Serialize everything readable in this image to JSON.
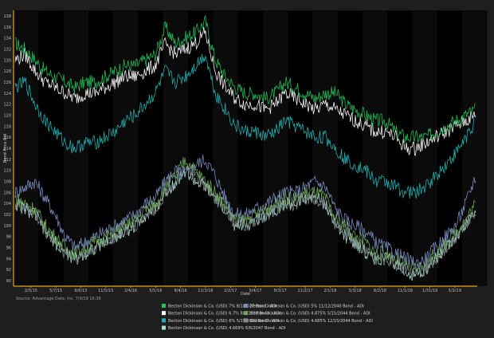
{
  "chart_data": {
    "type": "line",
    "xlabel": "Date",
    "ylabel": "Bond Price Bid",
    "source_note": "Source: Advantage Data, Inc. 7/9/19 16:36",
    "x_ticks": [
      "2/5/15",
      "5/7/15",
      "8/6/15",
      "11/5/15",
      "2/4/16",
      "5/5/16",
      "8/4/16",
      "11/3/16",
      "2/2/17",
      "5/4/17",
      "8/3/17",
      "11/2/17",
      "2/1/18",
      "5/3/18",
      "8/2/18",
      "11/1/18",
      "1/31/19",
      "5/2/19"
    ],
    "y_ticks": [
      90,
      92,
      94,
      96,
      98,
      100,
      102,
      104,
      106,
      108,
      110,
      112,
      114,
      116,
      118,
      120,
      122,
      124,
      126,
      128,
      130,
      132,
      134,
      136,
      138
    ],
    "ylim": [
      89,
      139
    ],
    "grid": false,
    "legend_position": "bottom",
    "series": [
      {
        "name": "Becton Dickinson & Co. (USD) 7% 8/1/2027 Bond - ADI",
        "color": "#22c35a",
        "values": [
          133,
          132,
          130,
          128,
          127,
          126,
          125,
          126,
          126,
          127,
          128,
          129,
          129,
          130,
          131,
          136,
          133,
          134,
          135,
          137,
          130,
          127,
          125,
          124,
          124,
          123,
          124,
          126,
          125,
          124,
          123,
          124,
          124,
          122,
          121,
          120,
          119,
          119,
          117,
          116,
          116,
          116,
          117,
          118,
          119,
          120,
          121
        ]
      },
      {
        "name": "Becton Dickinson & Co. (USD) 5% 11/12/2040 Bond - ADI",
        "color": "#7a8fc4",
        "values": [
          106,
          107,
          108,
          105,
          102,
          98,
          96,
          97,
          98,
          99,
          100,
          101,
          102,
          104,
          105,
          108,
          110,
          109,
          111,
          112,
          109,
          105,
          102,
          102,
          103,
          104,
          105,
          106,
          106,
          107,
          108,
          107,
          103,
          101,
          100,
          99,
          97,
          96,
          95,
          94,
          93,
          94,
          96,
          98,
          100,
          104,
          109
        ]
      },
      {
        "name": "Becton Dickinson & Co. (USD) 6.7% 8/1/2028 Bond - ADI",
        "color": "#ffffff",
        "values": [
          130,
          131,
          128,
          126,
          125,
          124,
          123,
          124,
          124,
          125,
          126,
          127,
          127,
          128,
          129,
          133,
          131,
          132,
          133,
          135,
          128,
          125,
          123,
          122,
          122,
          121,
          122,
          124,
          123,
          122,
          121,
          122,
          121,
          120,
          119,
          118,
          117,
          117,
          116,
          114,
          114,
          115,
          116,
          117,
          118,
          119,
          120
        ]
      },
      {
        "name": "Becton Dickinson & Co. (USD) 4.875% 5/15/2044 Bond - ADI",
        "color": "#6faa55",
        "values": [
          105,
          104,
          103,
          100,
          98,
          96,
          95,
          96,
          97,
          98,
          99,
          100,
          101,
          103,
          104,
          107,
          109,
          112,
          110,
          108,
          106,
          104,
          101,
          101,
          102,
          103,
          104,
          105,
          105,
          106,
          106,
          105,
          101,
          100,
          98,
          97,
          95,
          95,
          94,
          93,
          92,
          93,
          95,
          97,
          99,
          101,
          104
        ]
      },
      {
        "name": "Becton Dickinson & Co. (USD) 6% 5/15/2039 Bond - ADI",
        "color": "#1fb3b3",
        "values": [
          125,
          126,
          122,
          119,
          117,
          115,
          114,
          115,
          115,
          116,
          117,
          119,
          120,
          122,
          124,
          128,
          126,
          127,
          129,
          131,
          124,
          121,
          118,
          117,
          117,
          116,
          117,
          119,
          118,
          117,
          116,
          116,
          114,
          112,
          111,
          110,
          108,
          108,
          107,
          106,
          106,
          107,
          109,
          111,
          113,
          116,
          119
        ]
      },
      {
        "name": "Becton Dickinson & Co. (USD) 4.685% 12/15/2044 Bond - ADI",
        "color": "#7d8b8b",
        "values": [
          104,
          103,
          102,
          99,
          97,
          95,
          94,
          95,
          96,
          97,
          98,
          99,
          100,
          102,
          103,
          106,
          108,
          110,
          109,
          107,
          105,
          103,
          100,
          100,
          101,
          102,
          103,
          104,
          104,
          105,
          105,
          104,
          100,
          99,
          97,
          96,
          94,
          94,
          93,
          92,
          91,
          92,
          94,
          96,
          98,
          100,
          103
        ]
      },
      {
        "name": "Becton Dickinson & Co. (USD) 4.669% 6/6/2047 Bond - ADI",
        "color": "#b0ded5",
        "values": [
          104,
          103,
          102,
          99,
          97,
          95,
          94,
          95,
          96,
          97,
          98,
          99,
          100,
          102,
          103,
          106,
          108,
          110,
          108,
          107,
          105,
          103,
          100,
          100,
          101,
          102,
          103,
          104,
          104,
          105,
          105,
          104,
          100,
          98,
          97,
          95,
          94,
          94,
          93,
          92,
          91,
          92,
          94,
          96,
          98,
          100,
          103
        ]
      }
    ]
  }
}
